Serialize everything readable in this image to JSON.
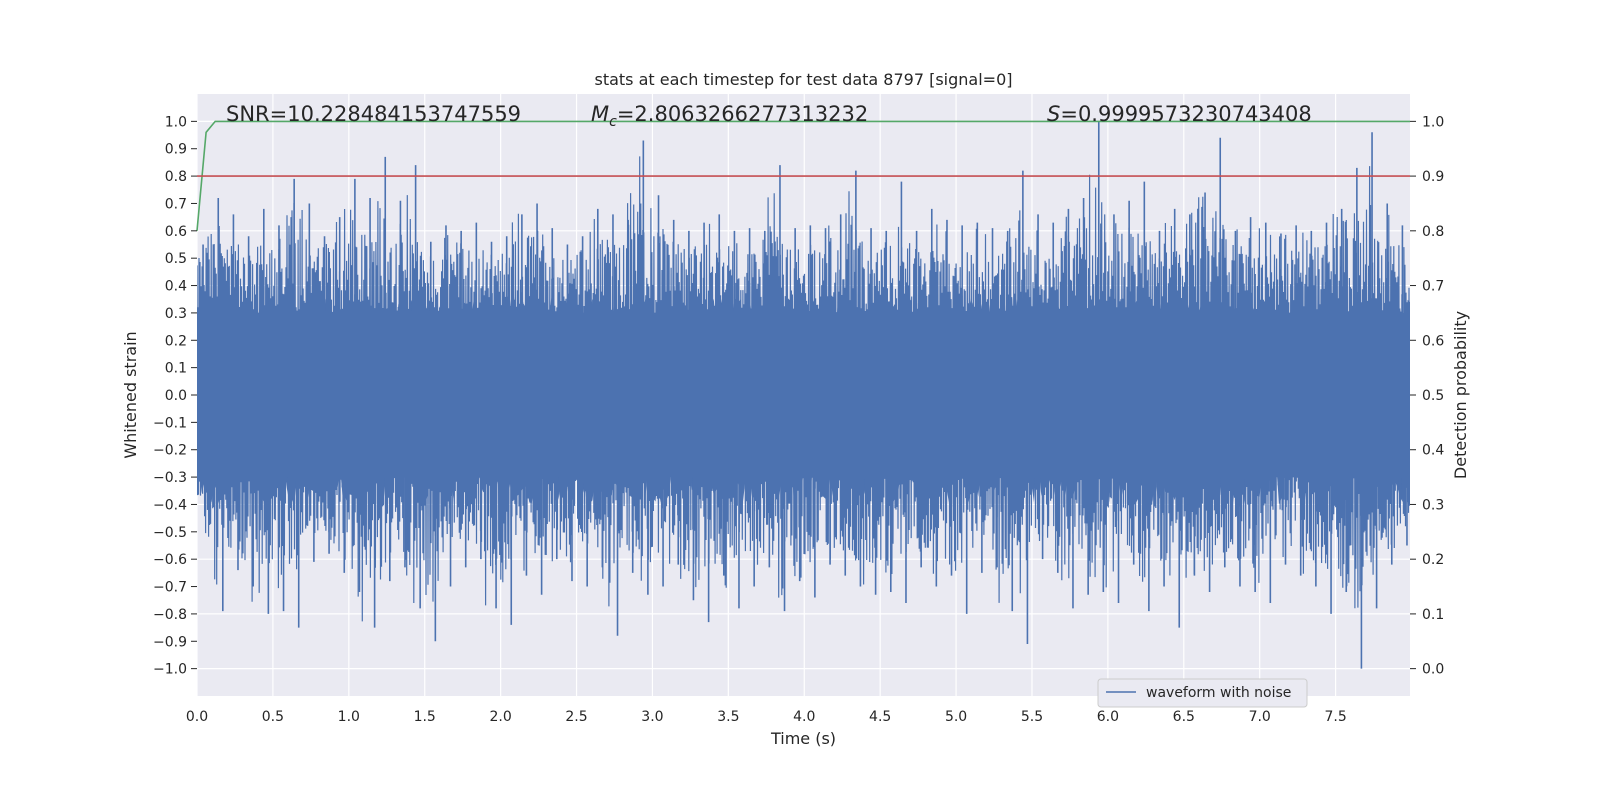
{
  "chart_data": {
    "type": "line",
    "title": "stats at each timestep for test data 8797 [signal=0]",
    "xlabel": "Time (s)",
    "ylabel": "Whitened strain",
    "y2label": "Detection probability",
    "xlim": [
      0.0,
      7.99
    ],
    "ylim": [
      -1.1,
      1.1
    ],
    "y2lim": [
      -0.05,
      1.05
    ],
    "x_ticks": [
      "0.0",
      "0.5",
      "1.0",
      "1.5",
      "2.0",
      "2.5",
      "3.0",
      "3.5",
      "4.0",
      "4.5",
      "5.0",
      "5.5",
      "6.0",
      "6.5",
      "7.0",
      "7.5"
    ],
    "x_tick_values": [
      0.0,
      0.5,
      1.0,
      1.5,
      2.0,
      2.5,
      3.0,
      3.5,
      4.0,
      4.5,
      5.0,
      5.5,
      6.0,
      6.5,
      7.0,
      7.5
    ],
    "y_ticks": [
      "1.0",
      "0.9",
      "0.8",
      "0.7",
      "0.6",
      "0.5",
      "0.4",
      "0.3",
      "0.2",
      "0.1",
      "0.0",
      "−0.1",
      "−0.2",
      "−0.3",
      "−0.4",
      "−0.5",
      "−0.6",
      "−0.7",
      "−0.8",
      "−0.9",
      "−1.0"
    ],
    "y_tick_values": [
      1.0,
      0.9,
      0.8,
      0.7,
      0.6,
      0.5,
      0.4,
      0.3,
      0.2,
      0.1,
      0.0,
      -0.1,
      -0.2,
      -0.3,
      -0.4,
      -0.5,
      -0.6,
      -0.7,
      -0.8,
      -0.9,
      -1.0
    ],
    "y2_ticks": [
      "1.0",
      "0.9",
      "0.8",
      "0.7",
      "0.6",
      "0.5",
      "0.4",
      "0.3",
      "0.2",
      "0.1",
      "0.0"
    ],
    "y2_tick_values": [
      1.0,
      0.9,
      0.8,
      0.7,
      0.6,
      0.5,
      0.4,
      0.3,
      0.2,
      0.1,
      0.0
    ],
    "grid": true,
    "legend_position": "lower-right",
    "annotations": {
      "snr": "SNR=10.228484153747559",
      "mc_symbol": "M",
      "mc_subscript": "c",
      "mc_value": "=2.8063266277313232",
      "s_symbol": "S",
      "s_value": "=0.9999573230743408"
    },
    "series": [
      {
        "name": "waveform with noise",
        "axis": "left",
        "color": "#4c72b0",
        "envelope": {
          "x": [
            0.0,
            0.1,
            0.2,
            0.3,
            0.4,
            0.5,
            0.6,
            0.7,
            0.8,
            0.9,
            1.0,
            1.1,
            1.2,
            1.3,
            1.4,
            1.5,
            1.6,
            1.7,
            1.8,
            1.9,
            2.0,
            2.1,
            2.2,
            2.3,
            2.4,
            2.5,
            2.6,
            2.7,
            2.8,
            2.9,
            3.0,
            3.1,
            3.2,
            3.3,
            3.4,
            3.5,
            3.6,
            3.7,
            3.8,
            3.9,
            4.0,
            4.1,
            4.2,
            4.3,
            4.4,
            4.5,
            4.6,
            4.7,
            4.8,
            4.9,
            5.0,
            5.1,
            5.2,
            5.3,
            5.4,
            5.5,
            5.6,
            5.7,
            5.8,
            5.9,
            6.0,
            6.1,
            6.2,
            6.3,
            6.4,
            6.5,
            6.6,
            6.7,
            6.8,
            6.9,
            7.0,
            7.1,
            7.2,
            7.3,
            7.4,
            7.5,
            7.6,
            7.7,
            7.8,
            7.9
          ],
          "max": [
            0.55,
            0.72,
            0.66,
            0.58,
            0.68,
            0.62,
            0.79,
            0.7,
            0.58,
            0.65,
            0.79,
            0.72,
            0.87,
            0.71,
            0.84,
            0.56,
            0.62,
            0.6,
            0.63,
            0.56,
            0.58,
            0.66,
            0.7,
            0.61,
            0.55,
            0.58,
            0.68,
            0.66,
            0.64,
            0.93,
            0.73,
            0.64,
            0.6,
            0.63,
            0.66,
            0.6,
            0.61,
            0.6,
            0.84,
            0.61,
            0.62,
            0.61,
            0.66,
            0.82,
            0.61,
            0.6,
            0.78,
            0.6,
            0.68,
            0.64,
            0.62,
            0.63,
            0.61,
            0.6,
            0.82,
            0.66,
            0.63,
            0.68,
            0.72,
            1.0,
            0.66,
            0.71,
            0.78,
            0.6,
            0.68,
            0.66,
            0.74,
            0.94,
            0.6,
            0.65,
            0.63,
            0.59,
            0.62,
            0.6,
            0.63,
            0.68,
            0.83,
            0.96,
            0.7,
            0.62
          ],
          "min": [
            -0.42,
            -0.79,
            -0.64,
            -0.7,
            -0.8,
            -0.79,
            -0.85,
            -0.61,
            -0.58,
            -0.65,
            -0.72,
            -0.85,
            -0.68,
            -0.63,
            -0.78,
            -0.9,
            -0.7,
            -0.63,
            -0.6,
            -0.78,
            -0.84,
            -0.66,
            -0.73,
            -0.6,
            -0.68,
            -0.7,
            -0.63,
            -0.88,
            -0.65,
            -0.73,
            -0.7,
            -0.62,
            -0.75,
            -0.83,
            -0.66,
            -0.78,
            -0.7,
            -0.63,
            -0.79,
            -0.68,
            -0.74,
            -0.62,
            -0.66,
            -0.7,
            -0.73,
            -0.72,
            -0.76,
            -0.63,
            -0.7,
            -0.66,
            -0.8,
            -0.65,
            -0.63,
            -0.79,
            -0.91,
            -0.6,
            -0.65,
            -0.78,
            -0.73,
            -0.72,
            -0.76,
            -0.62,
            -0.79,
            -0.7,
            -0.85,
            -0.66,
            -0.72,
            -0.63,
            -0.7,
            -0.72,
            -0.76,
            -0.62,
            -0.66,
            -0.7,
            -0.8,
            -0.72,
            -1.0,
            -0.78,
            -0.62,
            -0.55
          ]
        }
      },
      {
        "name": "",
        "axis": "right",
        "color": "#55a868",
        "x": [
          0.0,
          0.06,
          0.12,
          0.5,
          1.0,
          2.0,
          3.0,
          4.0,
          5.0,
          6.0,
          7.0,
          7.99
        ],
        "values": [
          0.8,
          0.98,
          1.0,
          1.0,
          1.0,
          1.0,
          1.0,
          1.0,
          1.0,
          1.0,
          1.0,
          1.0
        ]
      },
      {
        "name": "",
        "axis": "right",
        "color": "#c44e52",
        "x": [
          0.0,
          7.99
        ],
        "values": [
          0.9,
          0.9
        ]
      }
    ]
  }
}
